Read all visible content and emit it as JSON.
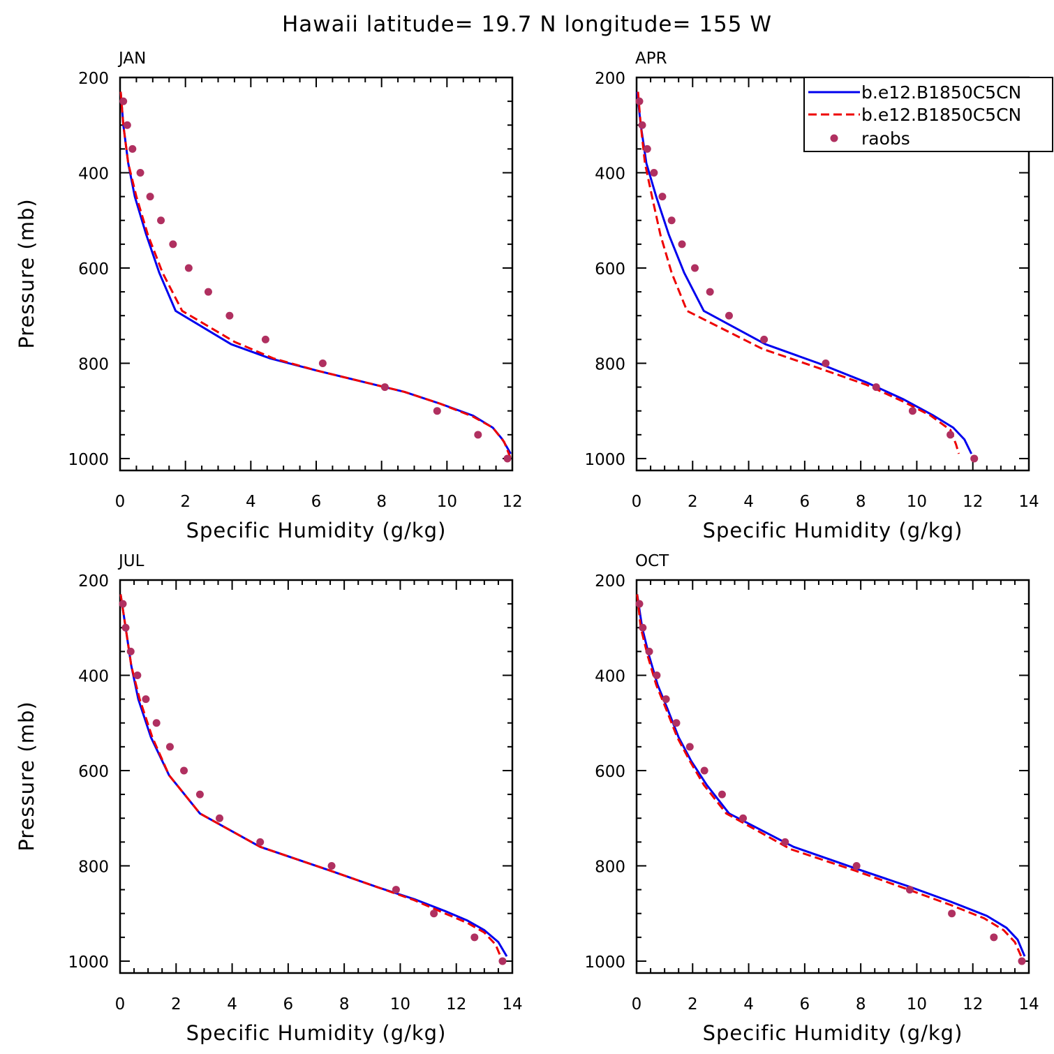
{
  "title": "Hawaii  latitude= 19.7 N longitude= 155 W",
  "colors": {
    "model1": "#0000ee",
    "model2": "#ee0000",
    "raobs": "#b03060"
  },
  "legend": {
    "placement": "top-right of APR panel",
    "entries": [
      {
        "label": "b.e12.B1850C5CN",
        "style": "solid",
        "color": "#0000ee"
      },
      {
        "label": "b.e12.B1850C5CN",
        "style": "dashed",
        "color": "#ee0000"
      },
      {
        "label": "raobs",
        "style": "marker",
        "color": "#b03060"
      }
    ]
  },
  "chart_data": [
    {
      "type": "line",
      "panel": "JAN",
      "xlabel": "Specific Humidity (g/kg)",
      "ylabel": "Pressure (mb)",
      "xlim": [
        0,
        12
      ],
      "ylim": [
        1025,
        200
      ],
      "xticks": [
        0,
        2,
        4,
        6,
        8,
        10,
        12
      ],
      "yticks": [
        200,
        400,
        600,
        800,
        1000
      ],
      "series": [
        {
          "name": "b.e12.B1850C5CN",
          "style": "solid",
          "points": [
            [
              0.02,
              230
            ],
            [
              0.1,
              300
            ],
            [
              0.25,
              380
            ],
            [
              0.45,
              450
            ],
            [
              0.8,
              530
            ],
            [
              1.2,
              610
            ],
            [
              1.7,
              690
            ],
            [
              3.4,
              760
            ],
            [
              4.6,
              790
            ],
            [
              6.0,
              815
            ],
            [
              7.5,
              840
            ],
            [
              8.7,
              860
            ],
            [
              9.8,
              885
            ],
            [
              10.8,
              910
            ],
            [
              11.4,
              935
            ],
            [
              11.7,
              960
            ],
            [
              11.95,
              990
            ]
          ]
        },
        {
          "name": "b.e12.B1850C5CN",
          "style": "dashed",
          "points": [
            [
              0.02,
              230
            ],
            [
              0.1,
              300
            ],
            [
              0.25,
              380
            ],
            [
              0.5,
              450
            ],
            [
              0.85,
              530
            ],
            [
              1.3,
              610
            ],
            [
              1.9,
              690
            ],
            [
              3.5,
              755
            ],
            [
              4.7,
              790
            ],
            [
              6.0,
              815
            ],
            [
              7.5,
              840
            ],
            [
              8.7,
              860
            ],
            [
              9.8,
              885
            ],
            [
              10.8,
              912
            ],
            [
              11.4,
              935
            ],
            [
              11.75,
              965
            ],
            [
              11.95,
              1000
            ]
          ]
        },
        {
          "name": "raobs",
          "style": "marker",
          "points": [
            [
              0.1,
              250
            ],
            [
              0.22,
              300
            ],
            [
              0.38,
              350
            ],
            [
              0.62,
              400
            ],
            [
              0.92,
              450
            ],
            [
              1.25,
              500
            ],
            [
              1.62,
              550
            ],
            [
              2.1,
              600
            ],
            [
              2.7,
              650
            ],
            [
              3.35,
              700
            ],
            [
              4.45,
              750
            ],
            [
              6.2,
              800
            ],
            [
              8.1,
              850
            ],
            [
              9.7,
              900
            ],
            [
              10.95,
              950
            ],
            [
              11.85,
              1000
            ]
          ]
        }
      ]
    },
    {
      "type": "line",
      "panel": "APR",
      "xlabel": "Specific Humidity (g/kg)",
      "ylabel": "",
      "xlim": [
        0,
        14
      ],
      "ylim": [
        1025,
        200
      ],
      "xticks": [
        0,
        2,
        4,
        6,
        8,
        10,
        12,
        14
      ],
      "yticks": [
        200,
        400,
        600,
        800,
        1000
      ],
      "series": [
        {
          "name": "b.e12.B1850C5CN",
          "style": "solid",
          "points": [
            [
              0.02,
              230
            ],
            [
              0.15,
              300
            ],
            [
              0.35,
              380
            ],
            [
              0.7,
              450
            ],
            [
              1.15,
              530
            ],
            [
              1.7,
              610
            ],
            [
              2.4,
              690
            ],
            [
              4.6,
              760
            ],
            [
              6.5,
              800
            ],
            [
              8.2,
              840
            ],
            [
              9.5,
              875
            ],
            [
              10.6,
              910
            ],
            [
              11.3,
              935
            ],
            [
              11.7,
              960
            ],
            [
              11.95,
              990
            ]
          ]
        },
        {
          "name": "b.e12.B1850C5CN",
          "style": "dashed",
          "points": [
            [
              0.05,
              230
            ],
            [
              0.15,
              300
            ],
            [
              0.3,
              380
            ],
            [
              0.55,
              450
            ],
            [
              0.85,
              530
            ],
            [
              1.25,
              610
            ],
            [
              1.8,
              690
            ],
            [
              4.5,
              770
            ],
            [
              6.5,
              810
            ],
            [
              8.2,
              845
            ],
            [
              9.5,
              880
            ],
            [
              10.5,
              910
            ],
            [
              11.2,
              940
            ],
            [
              11.4,
              970
            ],
            [
              11.5,
              990
            ]
          ]
        },
        {
          "name": "raobs",
          "style": "marker",
          "points": [
            [
              0.1,
              250
            ],
            [
              0.2,
              300
            ],
            [
              0.38,
              350
            ],
            [
              0.62,
              400
            ],
            [
              0.92,
              450
            ],
            [
              1.25,
              500
            ],
            [
              1.62,
              550
            ],
            [
              2.08,
              600
            ],
            [
              2.62,
              650
            ],
            [
              3.3,
              700
            ],
            [
              4.55,
              750
            ],
            [
              6.75,
              800
            ],
            [
              8.55,
              850
            ],
            [
              9.85,
              900
            ],
            [
              11.2,
              950
            ],
            [
              12.05,
              1000
            ]
          ]
        }
      ]
    },
    {
      "type": "line",
      "panel": "JUL",
      "xlabel": "Specific Humidity (g/kg)",
      "ylabel": "Pressure (mb)",
      "xlim": [
        0,
        14
      ],
      "ylim": [
        1025,
        200
      ],
      "xticks": [
        0,
        2,
        4,
        6,
        8,
        10,
        12,
        14
      ],
      "yticks": [
        200,
        400,
        600,
        800,
        1000
      ],
      "series": [
        {
          "name": "b.e12.B1850C5CN",
          "style": "solid",
          "points": [
            [
              0.02,
              230
            ],
            [
              0.2,
              300
            ],
            [
              0.4,
              380
            ],
            [
              0.65,
              450
            ],
            [
              1.1,
              530
            ],
            [
              1.75,
              610
            ],
            [
              2.85,
              690
            ],
            [
              5.0,
              760
            ],
            [
              7.5,
              810
            ],
            [
              9.2,
              845
            ],
            [
              10.5,
              870
            ],
            [
              11.6,
              895
            ],
            [
              12.4,
              915
            ],
            [
              13.0,
              935
            ],
            [
              13.5,
              960
            ],
            [
              13.8,
              990
            ]
          ]
        },
        {
          "name": "b.e12.B1850C5CN",
          "style": "dashed",
          "points": [
            [
              0.02,
              230
            ],
            [
              0.2,
              300
            ],
            [
              0.4,
              380
            ],
            [
              0.7,
              450
            ],
            [
              1.15,
              530
            ],
            [
              1.75,
              610
            ],
            [
              2.85,
              690
            ],
            [
              5.0,
              760
            ],
            [
              7.5,
              810
            ],
            [
              9.2,
              845
            ],
            [
              10.5,
              872
            ],
            [
              11.6,
              900
            ],
            [
              12.4,
              920
            ],
            [
              13.0,
              940
            ],
            [
              13.4,
              965
            ],
            [
              13.65,
              1000
            ]
          ]
        },
        {
          "name": "raobs",
          "style": "marker",
          "points": [
            [
              0.1,
              250
            ],
            [
              0.2,
              300
            ],
            [
              0.38,
              350
            ],
            [
              0.62,
              400
            ],
            [
              0.92,
              450
            ],
            [
              1.3,
              500
            ],
            [
              1.78,
              550
            ],
            [
              2.28,
              600
            ],
            [
              2.85,
              650
            ],
            [
              3.55,
              700
            ],
            [
              5.0,
              750
            ],
            [
              7.55,
              800
            ],
            [
              9.85,
              850
            ],
            [
              11.2,
              900
            ],
            [
              12.65,
              950
            ],
            [
              13.65,
              1000
            ]
          ]
        }
      ]
    },
    {
      "type": "line",
      "panel": "OCT",
      "xlabel": "Specific Humidity (g/kg)",
      "ylabel": "",
      "xlim": [
        0,
        14
      ],
      "ylim": [
        1025,
        200
      ],
      "xticks": [
        0,
        2,
        4,
        6,
        8,
        10,
        12,
        14
      ],
      "yticks": [
        200,
        400,
        600,
        800,
        1000
      ],
      "series": [
        {
          "name": "b.e12.B1850C5CN",
          "style": "solid",
          "points": [
            [
              0.02,
              230
            ],
            [
              0.2,
              300
            ],
            [
              0.45,
              360
            ],
            [
              0.75,
              420
            ],
            [
              1.1,
              470
            ],
            [
              1.5,
              530
            ],
            [
              1.95,
              580
            ],
            [
              2.5,
              630
            ],
            [
              3.3,
              690
            ],
            [
              5.6,
              760
            ],
            [
              7.8,
              805
            ],
            [
              9.8,
              845
            ],
            [
              11.2,
              875
            ],
            [
              12.5,
              905
            ],
            [
              13.2,
              930
            ],
            [
              13.6,
              955
            ],
            [
              13.85,
              990
            ]
          ]
        },
        {
          "name": "b.e12.B1850C5CN",
          "style": "dashed",
          "points": [
            [
              0.02,
              230
            ],
            [
              0.15,
              300
            ],
            [
              0.4,
              360
            ],
            [
              0.7,
              420
            ],
            [
              1.05,
              470
            ],
            [
              1.45,
              530
            ],
            [
              1.9,
              580
            ],
            [
              2.4,
              630
            ],
            [
              3.2,
              690
            ],
            [
              5.5,
              765
            ],
            [
              7.8,
              810
            ],
            [
              9.8,
              852
            ],
            [
              11.2,
              882
            ],
            [
              12.4,
              910
            ],
            [
              13.1,
              935
            ],
            [
              13.5,
              960
            ],
            [
              13.8,
              1000
            ]
          ]
        },
        {
          "name": "raobs",
          "style": "marker",
          "points": [
            [
              0.1,
              250
            ],
            [
              0.22,
              300
            ],
            [
              0.45,
              350
            ],
            [
              0.72,
              400
            ],
            [
              1.05,
              450
            ],
            [
              1.42,
              500
            ],
            [
              1.9,
              550
            ],
            [
              2.42,
              600
            ],
            [
              3.05,
              650
            ],
            [
              3.8,
              700
            ],
            [
              5.3,
              750
            ],
            [
              7.85,
              800
            ],
            [
              9.75,
              850
            ],
            [
              11.25,
              900
            ],
            [
              12.75,
              950
            ],
            [
              13.75,
              1000
            ]
          ]
        }
      ]
    }
  ]
}
